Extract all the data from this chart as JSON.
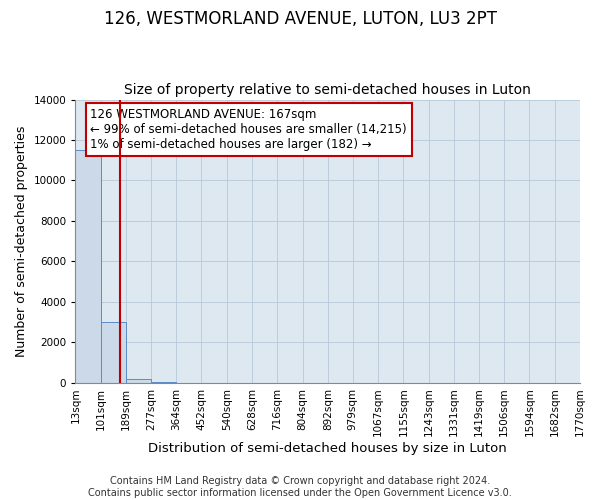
{
  "title": "126, WESTMORLAND AVENUE, LUTON, LU3 2PT",
  "subtitle": "Size of property relative to semi-detached houses in Luton",
  "xlabel": "Distribution of semi-detached houses by size in Luton",
  "ylabel": "Number of semi-detached properties",
  "footer_line1": "Contains HM Land Registry data © Crown copyright and database right 2024.",
  "footer_line2": "Contains public sector information licensed under the Open Government Licence v3.0.",
  "annotation_line1": "126 WESTMORLAND AVENUE: 167sqm",
  "annotation_line2": "← 99% of semi-detached houses are smaller (14,215)",
  "annotation_line3": "1% of semi-detached houses are larger (182) →",
  "property_size_sqm": 167,
  "bin_edges": [
    13,
    101,
    189,
    277,
    364,
    452,
    540,
    628,
    716,
    804,
    892,
    979,
    1067,
    1155,
    1243,
    1331,
    1419,
    1506,
    1594,
    1682,
    1770
  ],
  "bin_labels": [
    "13sqm",
    "101sqm",
    "189sqm",
    "277sqm",
    "364sqm",
    "452sqm",
    "540sqm",
    "628sqm",
    "716sqm",
    "804sqm",
    "892sqm",
    "979sqm",
    "1067sqm",
    "1155sqm",
    "1243sqm",
    "1331sqm",
    "1419sqm",
    "1506sqm",
    "1594sqm",
    "1682sqm",
    "1770sqm"
  ],
  "bar_heights": [
    11500,
    3000,
    200,
    30,
    5,
    2,
    1,
    1,
    0,
    0,
    0,
    0,
    0,
    0,
    0,
    0,
    0,
    0,
    0,
    0
  ],
  "bar_color": "#ccd9e8",
  "bar_edge_color": "#5b8cc8",
  "marker_line_color": "#c00000",
  "ylim": [
    0,
    14000
  ],
  "yticks": [
    0,
    2000,
    4000,
    6000,
    8000,
    10000,
    12000,
    14000
  ],
  "grid_color": "#b8c8d8",
  "background_color": "#dde8f0",
  "annotation_box_color": "#ffffff",
  "annotation_box_edge_color": "#c00000",
  "title_fontsize": 12,
  "subtitle_fontsize": 10,
  "axis_label_fontsize": 9,
  "tick_fontsize": 7.5,
  "annotation_fontsize": 8.5,
  "footer_fontsize": 7
}
